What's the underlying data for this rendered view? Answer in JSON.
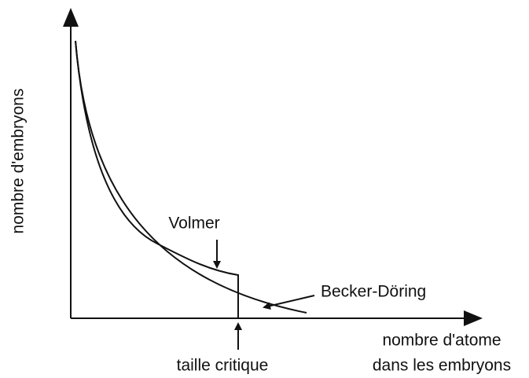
{
  "y_axis_label": "nombre d'embryons",
  "x_axis_label": [
    "nombre d'atome",
    "dans les embryons"
  ],
  "annotations": {
    "volmer": "Volmer",
    "becker_doring": "Becker-Döring",
    "critical_size": "taille critique"
  }
}
